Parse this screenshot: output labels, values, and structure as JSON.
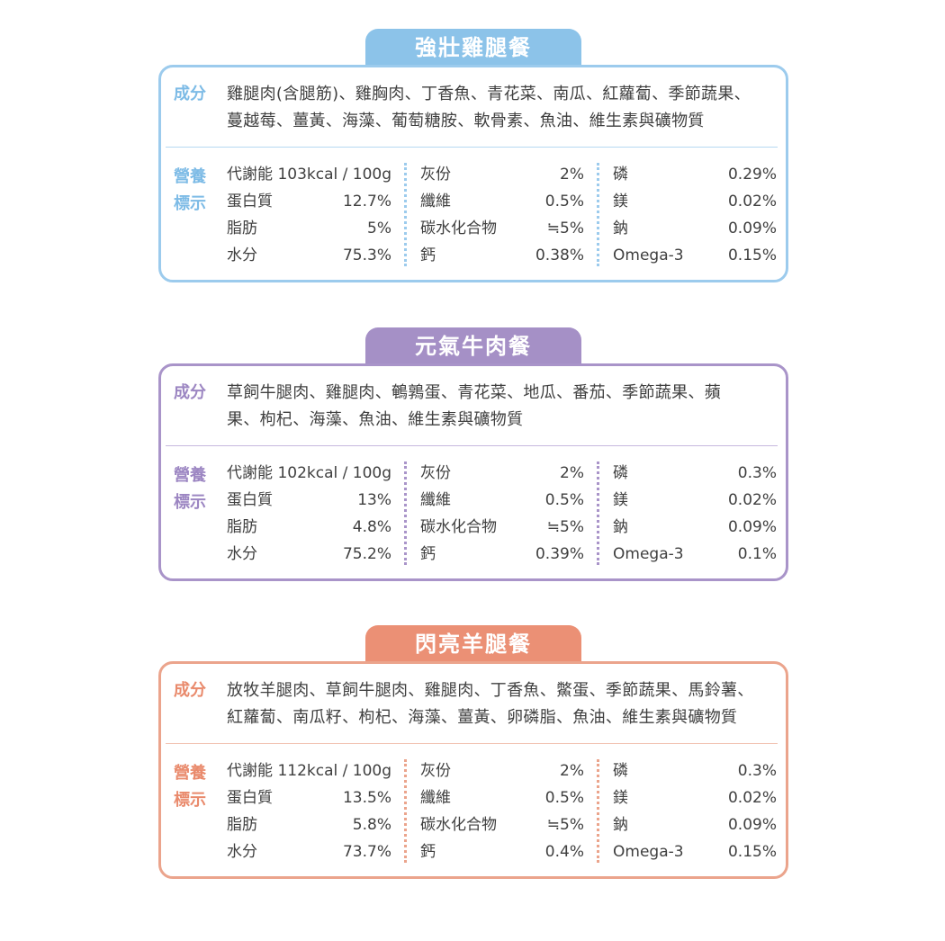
{
  "products": [
    {
      "title": "強壯雞腿餐",
      "ingredients_label": "成分",
      "ingredients_line1": "雞腿肉(含腿筋)、雞胸肉、丁香魚、青花菜、南瓜、紅蘿蔔、季節蔬果、",
      "ingredients_line2": "蔓越莓、薑黃、海藻、葡萄糖胺、軟骨素、魚油、維生素與礦物質",
      "nutrition_label_1": "營養",
      "nutrition_label_2": "標示",
      "col1": [
        {
          "name": "代謝能",
          "value": "103kcal / 100g"
        },
        {
          "name": "蛋白質",
          "value": "12.7%"
        },
        {
          "name": "脂肪",
          "value": "5%"
        },
        {
          "name": "水分",
          "value": "75.3%"
        }
      ],
      "col2": [
        {
          "name": "灰份",
          "value": "2%"
        },
        {
          "name": "纖維",
          "value": "0.5%"
        },
        {
          "name": "碳水化合物",
          "value": "≒5%"
        },
        {
          "name": "鈣",
          "value": "0.38%"
        }
      ],
      "col3": [
        {
          "name": "磷",
          "value": "0.29%"
        },
        {
          "name": "鎂",
          "value": "0.02%"
        },
        {
          "name": "鈉",
          "value": "0.09%"
        },
        {
          "name": "Omega-3",
          "value": "0.15%"
        }
      ]
    },
    {
      "title": "元氣牛肉餐",
      "ingredients_label": "成分",
      "ingredients_line1": "草飼牛腿肉、雞腿肉、鵪鶉蛋、青花菜、地瓜、番茄、季節蔬果、蘋",
      "ingredients_line2": "果、枸杞、海藻、魚油、維生素與礦物質",
      "nutrition_label_1": "營養",
      "nutrition_label_2": "標示",
      "col1": [
        {
          "name": "代謝能",
          "value": "102kcal / 100g"
        },
        {
          "name": "蛋白質",
          "value": "13%"
        },
        {
          "name": "脂肪",
          "value": "4.8%"
        },
        {
          "name": "水分",
          "value": "75.2%"
        }
      ],
      "col2": [
        {
          "name": "灰份",
          "value": "2%"
        },
        {
          "name": "纖維",
          "value": "0.5%"
        },
        {
          "name": "碳水化合物",
          "value": "≒5%"
        },
        {
          "name": "鈣",
          "value": "0.39%"
        }
      ],
      "col3": [
        {
          "name": "磷",
          "value": "0.3%"
        },
        {
          "name": "鎂",
          "value": "0.02%"
        },
        {
          "name": "鈉",
          "value": "0.09%"
        },
        {
          "name": "Omega-3",
          "value": "0.1%"
        }
      ]
    },
    {
      "title": "閃亮羊腿餐",
      "ingredients_label": "成分",
      "ingredients_line1": "放牧羊腿肉、草飼牛腿肉、雞腿肉、丁香魚、鱉蛋、季節蔬果、馬鈴薯、",
      "ingredients_line2": "紅蘿蔔、南瓜籽、枸杞、海藻、薑黃、卵磷脂、魚油、維生素與礦物質",
      "nutrition_label_1": "營養",
      "nutrition_label_2": "標示",
      "col1": [
        {
          "name": "代謝能",
          "value": "112kcal / 100g"
        },
        {
          "name": "蛋白質",
          "value": "13.5%"
        },
        {
          "name": "脂肪",
          "value": "5.8%"
        },
        {
          "name": "水分",
          "value": "73.7%"
        }
      ],
      "col2": [
        {
          "name": "灰份",
          "value": "2%"
        },
        {
          "name": "纖維",
          "value": "0.5%"
        },
        {
          "name": "碳水化合物",
          "value": "≒5%"
        },
        {
          "name": "鈣",
          "value": "0.4%"
        }
      ],
      "col3": [
        {
          "name": "磷",
          "value": "0.3%"
        },
        {
          "name": "鎂",
          "value": "0.02%"
        },
        {
          "name": "鈉",
          "value": "0.09%"
        },
        {
          "name": "Omega-3",
          "value": "0.15%"
        }
      ]
    }
  ],
  "colors": {
    "chicken": "#8cc3e9",
    "beef": "#a590c6",
    "lamb": "#eb9075",
    "text": "#3f3f3f"
  }
}
